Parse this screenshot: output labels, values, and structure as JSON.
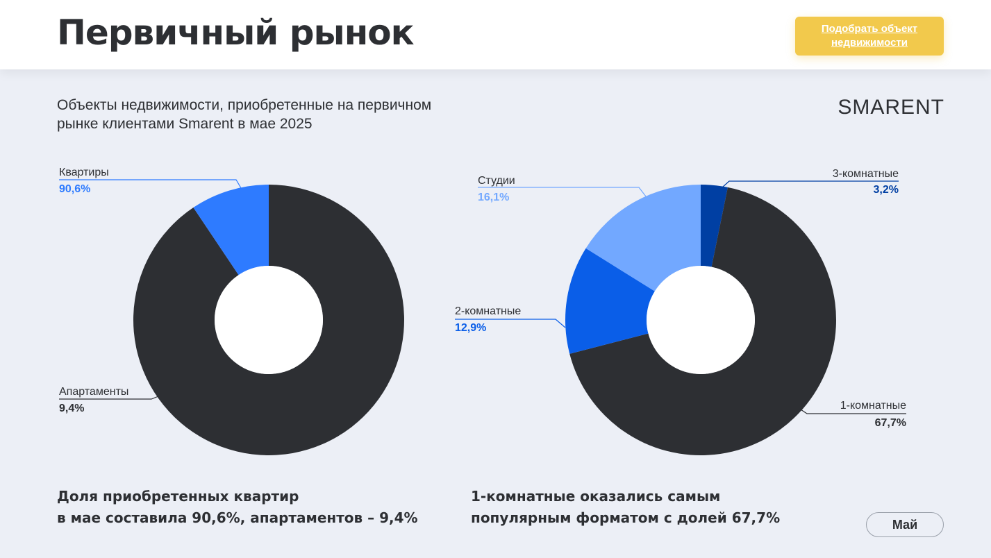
{
  "header": {
    "title": "Первичный рынок",
    "cta_line1": "Подобрать объект",
    "cta_line2": "недвижимости"
  },
  "subtitle_line1": "Объекты недвижимости, приобретенные на первичном",
  "subtitle_line2": "рынке клиентами Smarent  в мае 2025",
  "logo": "SMARENT",
  "colors": {
    "dark": "#2d2f33",
    "blue": "#2e7bff",
    "light_blue": "#72a8ff",
    "mid_blue": "#0a5ee8",
    "navy": "#003fa3",
    "accent": "#f2c94c"
  },
  "chart_data": [
    {
      "type": "pie",
      "donut": true,
      "slices": [
        {
          "label": "Квартиры",
          "value_text": "90,6%",
          "value": 90.6,
          "color": "#2d2f33"
        },
        {
          "label": "Апартаменты",
          "value_text": "9,4%",
          "value": 9.4,
          "color": "#2e7bff"
        }
      ]
    },
    {
      "type": "pie",
      "donut": true,
      "slices": [
        {
          "label": "1-комнатные",
          "value_text": "67,7%",
          "value": 67.7,
          "color": "#2d2f33"
        },
        {
          "label": "2-комнатные",
          "value_text": "12,9%",
          "value": 12.9,
          "color": "#0a5ee8"
        },
        {
          "label": "Студии",
          "value_text": "16,1%",
          "value": 16.1,
          "color": "#72a8ff"
        },
        {
          "label": "3-комнатные",
          "value_text": "3,2%",
          "value": 3.2,
          "color": "#003fa3"
        }
      ]
    }
  ],
  "conclusions": {
    "left_line1": "Доля приобретенных квартир",
    "left_line2": "в мае составила 90,6%, апартаментов – 9,4%",
    "right_line1": "1-комнатные оказались самым",
    "right_line2": "популярным форматом с долей 67,7%"
  },
  "month_button": "Май"
}
